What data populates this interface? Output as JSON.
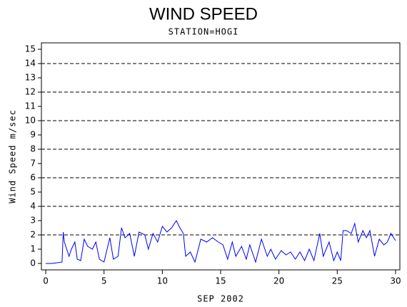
{
  "chart_data": {
    "type": "line",
    "title": "WIND SPEED",
    "subtitle": "STATION=HOGI",
    "x_label": "SEP 2002",
    "y_label": "Wind Speed m/sec",
    "color": "#0000ff",
    "x": [
      0,
      0.5,
      1,
      1.4,
      1.5,
      1.6,
      1.8,
      2.0,
      2.2,
      2.5,
      2.7,
      3.0,
      3.3,
      3.6,
      4.0,
      4.3,
      4.6,
      5.0,
      5.5,
      5.8,
      6.2,
      6.5,
      6.8,
      7.2,
      7.6,
      8.0,
      8.5,
      8.8,
      9.2,
      9.6,
      10.0,
      10.4,
      10.8,
      11.2,
      11.5,
      11.8,
      12.0,
      12.4,
      12.8,
      13.3,
      13.8,
      14.3,
      14.8,
      15.2,
      15.6,
      16.0,
      16.3,
      16.8,
      17.2,
      17.5,
      18.0,
      18.5,
      19.0,
      19.3,
      19.7,
      20.2,
      20.6,
      21.0,
      21.4,
      21.8,
      22.2,
      22.6,
      23.0,
      23.5,
      23.8,
      24.3,
      24.7,
      25.0,
      25.3,
      25.5,
      25.8,
      26.2,
      26.5,
      26.8,
      27.2,
      27.5,
      27.8,
      28.2,
      28.6,
      29.0,
      29.3,
      29.6,
      30.0
    ],
    "values": [
      0,
      0,
      0.05,
      0.1,
      2.2,
      1.5,
      1.0,
      0.5,
      1.0,
      1.5,
      0.3,
      0.2,
      1.7,
      1.2,
      1.0,
      1.5,
      0.3,
      0.1,
      1.8,
      0.3,
      0.5,
      2.5,
      1.8,
      2.1,
      0.5,
      2.2,
      2.0,
      1.0,
      2.1,
      1.5,
      2.6,
      2.2,
      2.5,
      3.0,
      2.5,
      2.1,
      0.5,
      0.8,
      0.1,
      1.7,
      1.5,
      1.8,
      1.5,
      1.3,
      0.3,
      1.5,
      0.5,
      1.2,
      0.3,
      1.3,
      0.1,
      1.7,
      0.5,
      1.0,
      0.3,
      0.9,
      0.6,
      0.8,
      0.3,
      0.8,
      0.2,
      1.0,
      0.2,
      2.1,
      0.5,
      1.5,
      0.2,
      0.8,
      0.2,
      2.3,
      2.3,
      2.1,
      2.8,
      1.5,
      2.3,
      1.8,
      2.3,
      0.5,
      1.7,
      1.3,
      1.5,
      2.1,
      1.6
    ],
    "xlim": [
      -0.37,
      30.37
    ],
    "xticks": [
      0,
      5,
      10,
      15,
      20,
      25,
      30
    ],
    "ylim": [
      -0.45,
      15.45
    ],
    "yticks": [
      0,
      1,
      2,
      3,
      4,
      5,
      6,
      7,
      8,
      9,
      10,
      11,
      12,
      13,
      14,
      15
    ],
    "ygrid": [
      2,
      4,
      6,
      8,
      10,
      12,
      14
    ]
  }
}
